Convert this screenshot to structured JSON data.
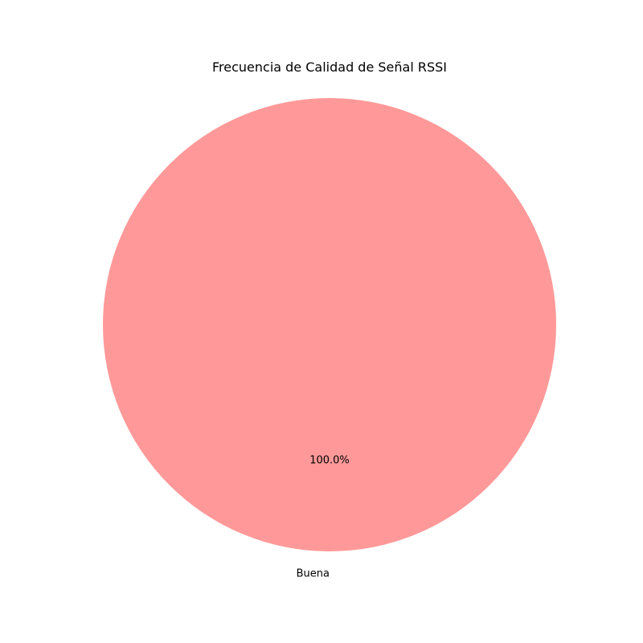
{
  "chart_data": {
    "type": "pie",
    "title": "Frecuencia de Calidad de Señal RSSI",
    "categories": [
      "Buena"
    ],
    "values": [
      100
    ],
    "percent_labels": [
      "100.0%"
    ],
    "colors": [
      "#ff9999"
    ]
  }
}
